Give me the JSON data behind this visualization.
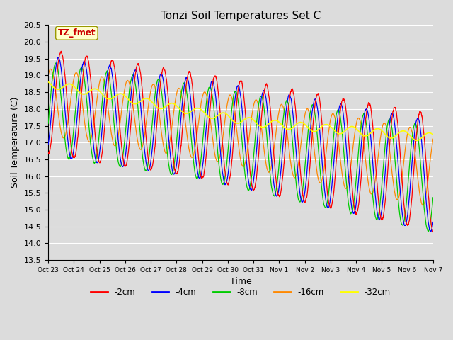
{
  "title": "Tonzi Soil Temperatures Set C",
  "xlabel": "Time",
  "ylabel": "Soil Temperature (C)",
  "ylim": [
    13.5,
    20.5
  ],
  "background_color": "#dcdcdc",
  "annotation_text": "TZ_fmet",
  "annotation_color": "#cc0000",
  "annotation_bg": "#ffffcc",
  "legend_labels": [
    "-2cm",
    "-4cm",
    "-8cm",
    "-16cm",
    "-32cm"
  ],
  "legend_colors": [
    "#ff0000",
    "#0000ff",
    "#00cc00",
    "#ff8800",
    "#ffff00"
  ],
  "tick_labels": [
    "Oct 23",
    "Oct 24",
    "Oct 25",
    "Oct 26",
    "Oct 27",
    "Oct 28",
    "Oct 29",
    "Oct 30",
    "Oct 31",
    "Nov 1",
    "Nov 2",
    "Nov 3",
    "Nov 4",
    "Nov 5",
    "Nov 6",
    "Nov 7"
  ],
  "n_points": 4320,
  "start_day": 0,
  "end_day": 15
}
